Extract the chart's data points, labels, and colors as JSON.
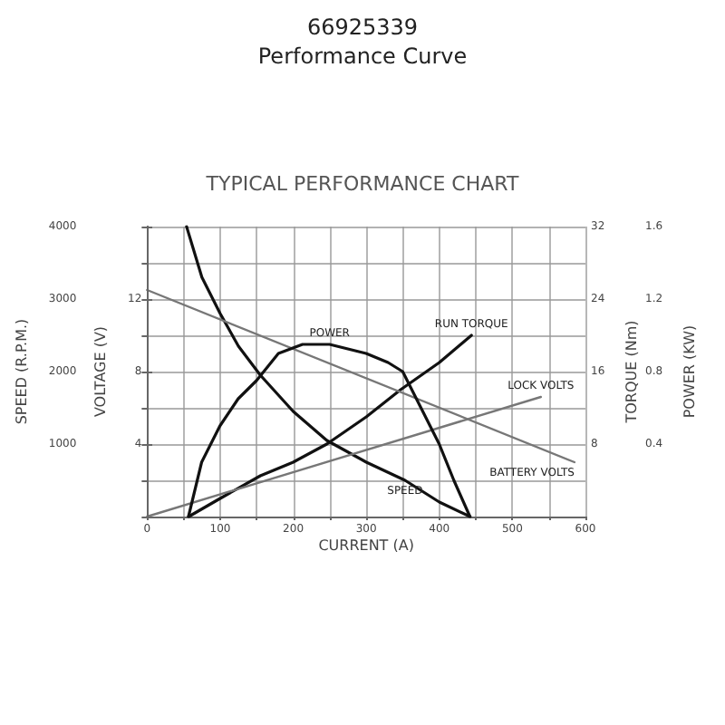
{
  "chart_data": [
    {
      "type": "line",
      "title": "66925339",
      "subtitle": "Performance Curve",
      "annotations": [
        "TYPICAL PERFORMANCE CHART"
      ],
      "xlabel": "CURRENT (A)",
      "ylabel": "SPEED (R.P.M.)",
      "y2label": "VOLTAGE (V)",
      "y3label": "TORQUE (Nm)",
      "xlim": [
        0,
        600
      ],
      "xticks": [
        0,
        {
          "value": 50,
          "label": null
        },
        100,
        {
          "value": 150,
          "label": null
        },
        200,
        {
          "value": 250,
          "label": null
        },
        300,
        {
          "value": 350,
          "label": null
        },
        400,
        {
          "value": 450,
          "label": null
        },
        500,
        {
          "value": 550,
          "label": null
        },
        600
      ],
      "ylim": [
        0,
        4000
      ],
      "yticks": [
        {
          "value": 0,
          "label": null
        },
        {
          "value": 500,
          "label": null
        },
        1000,
        {
          "value": 1500,
          "label": null
        },
        2000,
        {
          "value": 2500,
          "label": null
        },
        3000,
        {
          "value": 3500,
          "label": null
        },
        4000
      ],
      "y2lim": [
        0,
        16
      ],
      "y2ticks": [
        4,
        8,
        12
      ],
      "y3lim": [
        0,
        32
      ],
      "y3ticks": [
        8,
        16,
        24,
        32
      ],
      "grid": true,
      "legend": false,
      "marker": "none",
      "line_style": "solid",
      "series": [
        {
          "name": "SPEED",
          "color": "#111111",
          "x": [
            54,
            75,
            100,
            125,
            155,
            200,
            246,
            300,
            353,
            400,
            442
          ],
          "values": [
            4000,
            3300,
            2800,
            2350,
            1950,
            1450,
            1050,
            750,
            500,
            200,
            0
          ]
        },
        {
          "name": "RUN TORQUE",
          "color": "#111111",
          "axis": "y3",
          "x": [
            57,
            100,
            155,
            200,
            246,
            300,
            347,
            400,
            444
          ],
          "values": [
            0,
            2,
            4.5,
            6,
            8,
            11,
            14,
            17,
            20
          ]
        },
        {
          "name": "LOCK VOLTS",
          "color": "#777777",
          "axis": "y2",
          "x": [
            0,
            539
          ],
          "values": [
            0,
            6.6
          ]
        },
        {
          "name": "BATTERY VOLTS",
          "color": "#777777",
          "axis": "y2",
          "x": [
            0,
            585
          ],
          "values": [
            12.5,
            3
          ]
        }
      ]
    },
    {
      "type": "line",
      "ylabel": "POWER (KW)",
      "xlim": [
        0,
        600
      ],
      "ylim": [
        0,
        1.6
      ],
      "yticks": [
        0.4,
        0.8,
        1.2,
        1.6
      ],
      "tick_labels": "y",
      "legend": false,
      "marker": "none",
      "line_style": "solid",
      "series": [
        {
          "name": "POWER",
          "color": "#111111",
          "x": [
            57,
            75,
            100,
            125,
            150,
            180,
            213,
            250,
            300,
            330,
            350,
            375,
            400,
            420,
            442
          ],
          "values": [
            0,
            0.3,
            0.5,
            0.65,
            0.75,
            0.9,
            0.95,
            0.95,
            0.9,
            0.85,
            0.8,
            0.6,
            0.4,
            0.2,
            0
          ]
        }
      ]
    }
  ]
}
